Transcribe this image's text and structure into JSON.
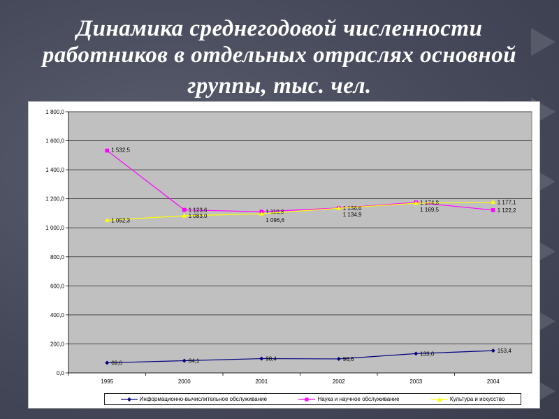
{
  "title_lines": [
    "Динамика среднегодовой численности",
    "работников в отдельных отраслях основной",
    "группы, тыс. чел."
  ],
  "chart_data": {
    "type": "line",
    "categories": [
      "1995",
      "2000",
      "2001",
      "2002",
      "2003",
      "2004"
    ],
    "ylim": [
      0,
      1800
    ],
    "y_ticks": [
      "0,0",
      "200,0",
      "400,0",
      "600,0",
      "800,0",
      "1 000,0",
      "1 200,0",
      "1 400,0",
      "1 600,0",
      "1 800,0"
    ],
    "y_tick_values": [
      0,
      200,
      400,
      600,
      800,
      1000,
      1200,
      1400,
      1600,
      1800
    ],
    "grid": true,
    "legend_position": "bottom",
    "series": [
      {
        "name": "Информационно-вычислительное обслуживание",
        "color": "#00007f",
        "marker": "diamond",
        "values": [
          69.6,
          84.1,
          98.4,
          96.6,
          133.0,
          153.4
        ],
        "labels": [
          "69,6",
          "84,1",
          "98,4",
          "96,6",
          "133,0",
          "153,4"
        ]
      },
      {
        "name": "Наука и научное обслуживание",
        "color": "#ff00ff",
        "marker": "square",
        "values": [
          1532.5,
          1123.6,
          1110.8,
          1136.6,
          1174.8,
          1122.2
        ],
        "labels": [
          "1 532,5",
          "1 123,6",
          "1 110,8",
          "1 136,6",
          "1 174,8",
          "1 122,2"
        ]
      },
      {
        "name": "Культура и искусство",
        "color": "#ffff00",
        "marker": "triangle",
        "values": [
          1052.3,
          1083.0,
          1096.6,
          1134.9,
          1169.5,
          1177.1
        ],
        "labels": [
          "1 052,3",
          "1 083,0",
          "1 096,6",
          "1 134,9",
          "1 169,5",
          "1 177,1"
        ]
      }
    ]
  }
}
